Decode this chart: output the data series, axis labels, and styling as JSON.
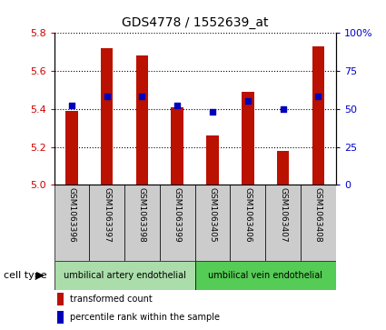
{
  "title": "GDS4778 / 1552639_at",
  "samples": [
    "GSM1063396",
    "GSM1063397",
    "GSM1063398",
    "GSM1063399",
    "GSM1063405",
    "GSM1063406",
    "GSM1063407",
    "GSM1063408"
  ],
  "bar_values": [
    5.39,
    5.72,
    5.68,
    5.41,
    5.26,
    5.49,
    5.18,
    5.73
  ],
  "percentile_values": [
    52,
    58,
    58,
    52,
    48,
    55,
    50,
    58
  ],
  "ylim_left": [
    5.0,
    5.8
  ],
  "ylim_right": [
    0,
    100
  ],
  "yticks_left": [
    5.0,
    5.2,
    5.4,
    5.6,
    5.8
  ],
  "yticks_right": [
    0,
    25,
    50,
    75,
    100
  ],
  "bar_color": "#bb1100",
  "dot_color": "#0000bb",
  "sample_box_color": "#cccccc",
  "ct_color_1": "#aaddaa",
  "ct_color_2": "#55cc55",
  "ct_label_1": "umbilical artery endothelial",
  "ct_label_2": "umbilical vein endothelial",
  "legend_bar_label": "transformed count",
  "legend_dot_label": "percentile rank within the sample",
  "cell_type_label": "cell type",
  "bar_axis_color": "#cc0000",
  "pct_axis_color": "#0000cc",
  "title_fontsize": 10,
  "tick_fontsize": 8,
  "sample_fontsize": 6.5,
  "legend_fontsize": 8,
  "ct_fontsize": 8
}
